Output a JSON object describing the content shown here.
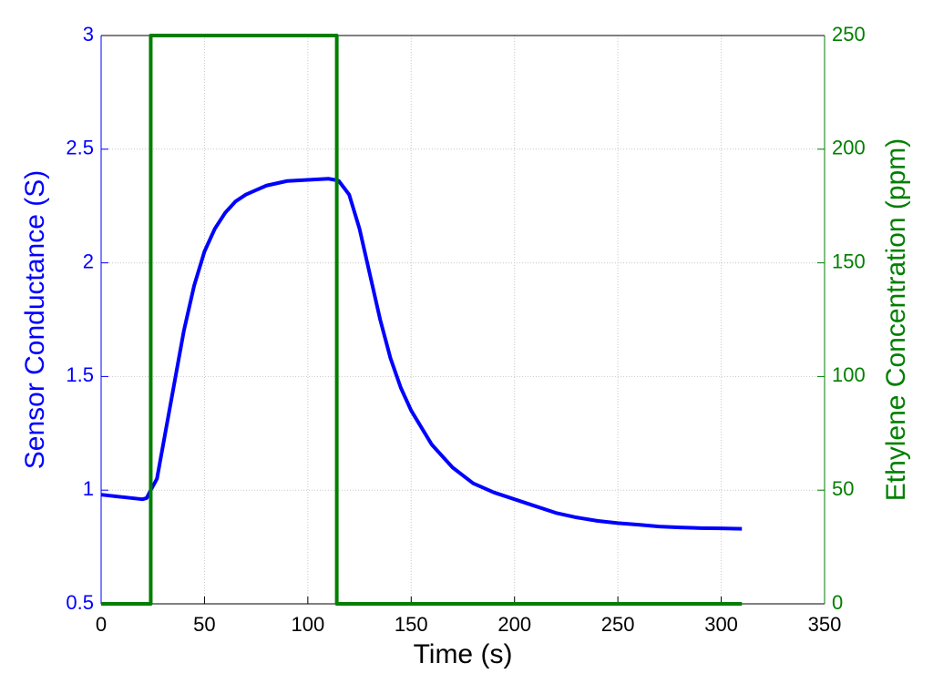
{
  "chart_data": {
    "type": "line",
    "xlabel": "Time (s)",
    "ylabel": "Sensor Conductance (S)",
    "y2label": "Ethylene Concentration (ppm)",
    "xlim": [
      0,
      350
    ],
    "xticks": [
      0,
      50,
      100,
      150,
      200,
      250,
      300,
      350
    ],
    "ylim": [
      0.5,
      3
    ],
    "yticks": [
      0.5,
      1,
      1.5,
      2,
      2.5,
      3
    ],
    "y2lim": [
      0,
      250
    ],
    "y2ticks": [
      0,
      50,
      100,
      150,
      200,
      250
    ],
    "grid": true,
    "ycolor": "#0000ff",
    "y2color": "#007f00",
    "series": [
      {
        "color": "#0000ff",
        "axis": "y",
        "x": [
          0,
          5,
          10,
          15,
          20,
          22,
          24,
          27,
          30,
          35,
          40,
          45,
          50,
          55,
          60,
          65,
          70,
          75,
          80,
          90,
          100,
          110,
          113,
          115,
          120,
          125,
          130,
          135,
          140,
          145,
          150,
          160,
          170,
          180,
          190,
          200,
          210,
          220,
          230,
          240,
          250,
          260,
          270,
          280,
          290,
          300,
          310
        ],
        "values": [
          0.98,
          0.975,
          0.97,
          0.965,
          0.96,
          0.965,
          1.0,
          1.05,
          1.2,
          1.45,
          1.7,
          1.9,
          2.05,
          2.15,
          2.22,
          2.27,
          2.3,
          2.32,
          2.34,
          2.36,
          2.365,
          2.37,
          2.365,
          2.36,
          2.3,
          2.15,
          1.95,
          1.75,
          1.58,
          1.45,
          1.35,
          1.2,
          1.1,
          1.03,
          0.99,
          0.96,
          0.93,
          0.9,
          0.88,
          0.865,
          0.855,
          0.848,
          0.84,
          0.836,
          0.833,
          0.832,
          0.83
        ]
      },
      {
        "color": "#007f00",
        "axis": "y2",
        "x": [
          0,
          24,
          24,
          114,
          114,
          310
        ],
        "values": [
          0,
          0,
          250,
          250,
          0,
          0
        ]
      }
    ]
  }
}
